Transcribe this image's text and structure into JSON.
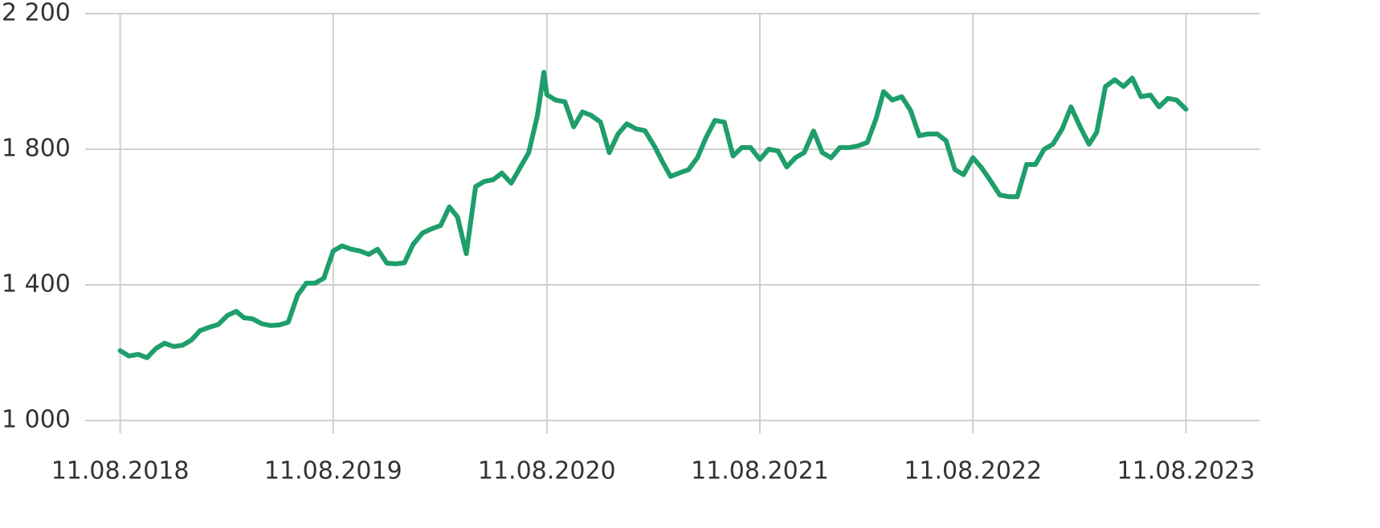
{
  "chart_data": {
    "type": "line",
    "color": "#1e9e6a",
    "grid": true,
    "x": [
      "11.08.2018",
      "26.08.2018",
      "11.09.2018",
      "26.09.2018",
      "11.10.2018",
      "26.10.2018",
      "11.11.2018",
      "26.11.2018",
      "11.12.2018",
      "26.12.2018",
      "11.01.2019",
      "26.01.2019",
      "11.02.2019",
      "26.02.2019",
      "11.03.2019",
      "26.03.2019",
      "11.04.2019",
      "26.04.2019",
      "11.05.2019",
      "26.05.2019",
      "11.06.2019",
      "26.06.2019",
      "11.07.2019",
      "26.07.2019",
      "11.08.2019",
      "26.08.2019",
      "11.09.2019",
      "26.09.2019",
      "11.10.2019",
      "26.10.2019",
      "11.11.2019",
      "26.11.2019",
      "11.12.2019",
      "26.12.2019",
      "11.01.2020",
      "26.01.2020",
      "11.02.2020",
      "26.02.2020",
      "11.03.2020",
      "26.03.2020",
      "11.04.2020",
      "26.04.2020",
      "11.05.2020",
      "26.05.2020",
      "11.06.2020",
      "26.06.2020",
      "11.07.2020",
      "26.07.2020",
      "06.08.2020",
      "11.08.2020",
      "26.08.2020",
      "11.09.2020",
      "26.09.2020",
      "11.10.2020",
      "26.10.2020",
      "11.11.2020",
      "26.11.2020",
      "11.12.2020",
      "26.12.2020",
      "11.01.2021",
      "26.01.2021",
      "11.02.2021",
      "26.02.2021",
      "11.03.2021",
      "26.03.2021",
      "11.04.2021",
      "26.04.2021",
      "11.05.2021",
      "26.05.2021",
      "11.06.2021",
      "26.06.2021",
      "11.07.2021",
      "26.07.2021",
      "11.08.2021",
      "26.08.2021",
      "11.09.2021",
      "26.09.2021",
      "11.10.2021",
      "26.10.2021",
      "11.11.2021",
      "26.11.2021",
      "11.12.2021",
      "26.12.2021",
      "11.01.2022",
      "26.01.2022",
      "11.02.2022",
      "26.02.2022",
      "11.03.2022",
      "26.03.2022",
      "11.04.2022",
      "26.04.2022",
      "11.05.2022",
      "26.05.2022",
      "11.06.2022",
      "26.06.2022",
      "11.07.2022",
      "26.07.2022",
      "11.08.2022",
      "26.08.2022",
      "11.09.2022",
      "26.09.2022",
      "11.10.2022",
      "26.10.2022",
      "11.11.2022",
      "26.11.2022",
      "11.12.2022",
      "26.12.2022",
      "11.01.2023",
      "26.01.2023",
      "11.02.2023",
      "26.02.2023",
      "11.03.2023",
      "26.03.2023",
      "11.04.2023",
      "26.04.2023",
      "11.05.2023",
      "26.05.2023",
      "11.06.2023",
      "26.06.2023",
      "11.07.2023",
      "26.07.2023",
      "11.08.2023"
    ],
    "values": [
      1206,
      1190,
      1195,
      1185,
      1212,
      1228,
      1218,
      1222,
      1237,
      1265,
      1275,
      1283,
      1310,
      1322,
      1303,
      1300,
      1285,
      1280,
      1282,
      1290,
      1370,
      1405,
      1405,
      1420,
      1500,
      1515,
      1505,
      1500,
      1490,
      1505,
      1464,
      1462,
      1465,
      1520,
      1553,
      1565,
      1575,
      1630,
      1600,
      1492,
      1690,
      1705,
      1710,
      1730,
      1700,
      1745,
      1790,
      1900,
      2027,
      1961,
      1945,
      1940,
      1866,
      1910,
      1900,
      1880,
      1790,
      1845,
      1875,
      1860,
      1855,
      1810,
      1760,
      1720,
      1730,
      1740,
      1775,
      1835,
      1885,
      1880,
      1780,
      1805,
      1805,
      1770,
      1800,
      1795,
      1748,
      1775,
      1790,
      1854,
      1790,
      1775,
      1805,
      1805,
      1810,
      1820,
      1890,
      1970,
      1945,
      1955,
      1915,
      1840,
      1845,
      1845,
      1825,
      1740,
      1725,
      1775,
      1745,
      1705,
      1665,
      1660,
      1660,
      1755,
      1755,
      1800,
      1815,
      1860,
      1925,
      1865,
      1815,
      1850,
      1985,
      2005,
      1985,
      2010,
      1955,
      1960,
      1925,
      1950,
      1945,
      1918
    ],
    "xlim": [
      "12.06.2018",
      "15.12.2023"
    ],
    "xticks": [
      "11.08.2018",
      "11.08.2019",
      "11.08.2020",
      "11.08.2021",
      "11.08.2022",
      "11.08.2023"
    ],
    "ylim": [
      1000,
      2200
    ],
    "yticks": [
      {
        "value": 1000,
        "label": "1 000"
      },
      {
        "value": 1400,
        "label": "1 400"
      },
      {
        "value": 1800,
        "label": "1 800"
      },
      {
        "value": 2200,
        "label": "2 200"
      }
    ]
  }
}
